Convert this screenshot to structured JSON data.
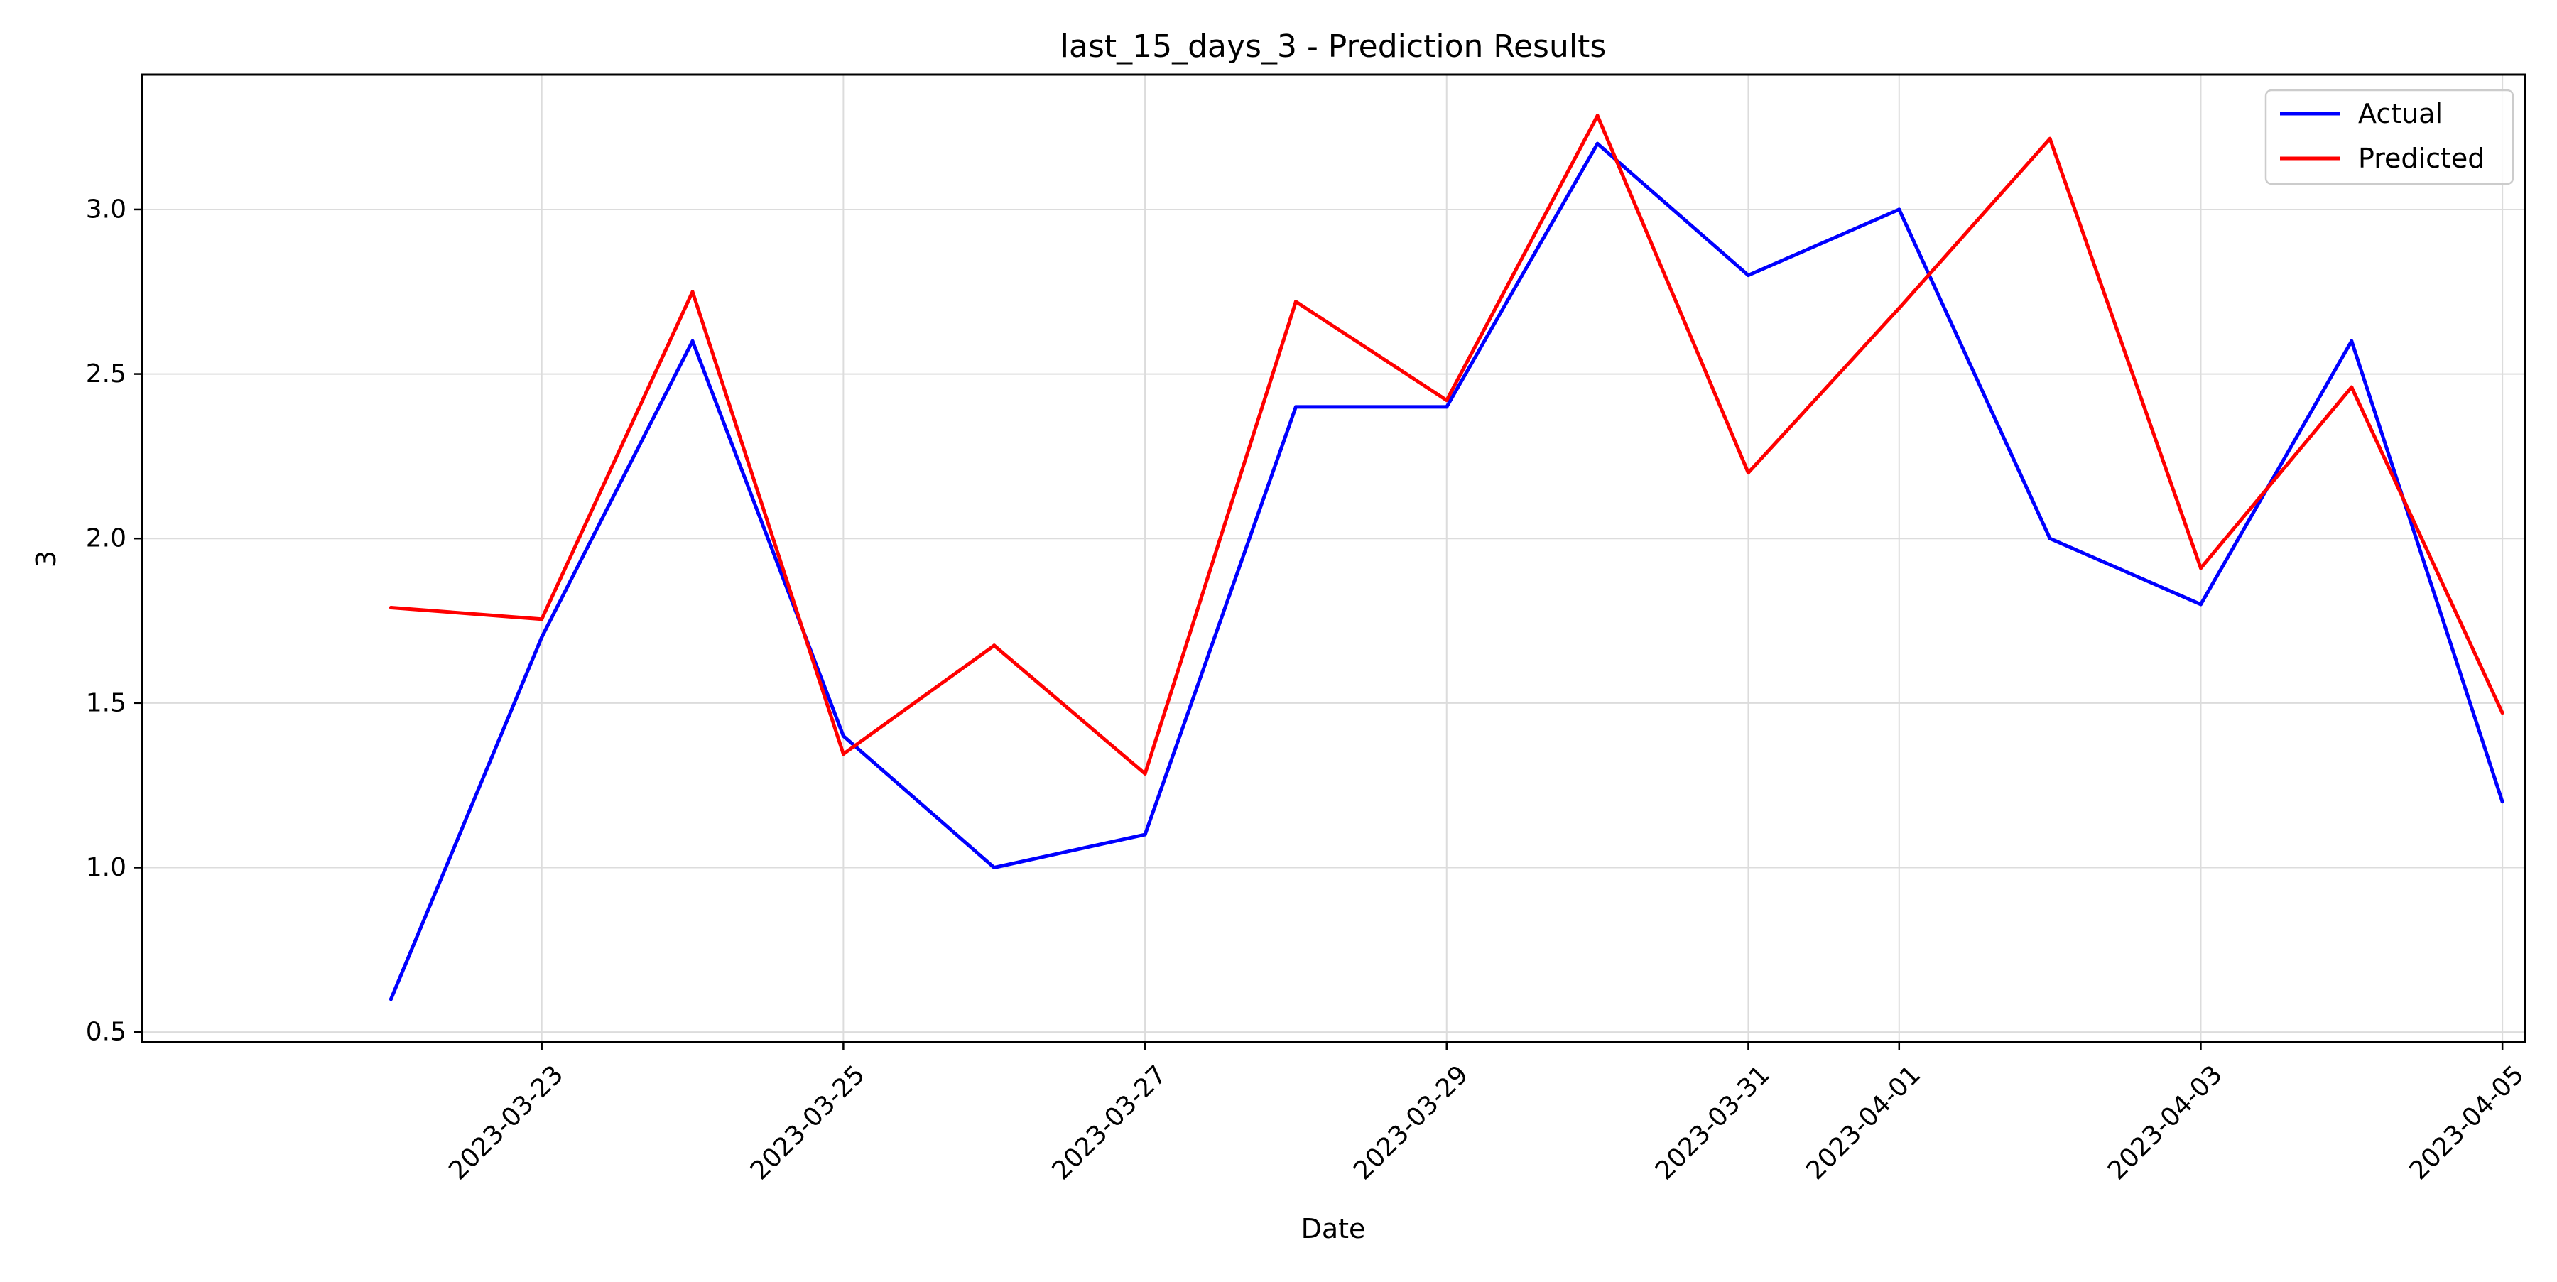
{
  "chart_data": {
    "type": "line",
    "title": "last_15_days_3 - Prediction Results",
    "xlabel": "Date",
    "ylabel": "3",
    "x": [
      "2023-03-22",
      "2023-03-23",
      "2023-03-24",
      "2023-03-25",
      "2023-03-26",
      "2023-03-27",
      "2023-03-28",
      "2023-03-29",
      "2023-03-30",
      "2023-03-31",
      "2023-04-01",
      "2023-04-02",
      "2023-04-03",
      "2023-04-04",
      "2023-04-05"
    ],
    "x_ticks": [
      "2023-03-23",
      "2023-03-25",
      "2023-03-27",
      "2023-03-29",
      "2023-03-31",
      "2023-04-01",
      "2023-04-03",
      "2023-04-05"
    ],
    "xlim": [
      "2023-03-21",
      "2023-04-05"
    ],
    "y_ticks": [
      "0.5",
      "1.0",
      "1.5",
      "2.0",
      "2.5",
      "3.0"
    ],
    "ylim": [
      0.47,
      3.41
    ],
    "grid": true,
    "legend_position": "top-right",
    "series": [
      {
        "name": "Actual",
        "color": "#0000ff",
        "values": [
          0.6,
          1.7,
          2.6,
          1.4,
          1.0,
          1.1,
          2.4,
          2.4,
          3.2,
          2.8,
          3.0,
          2.0,
          1.8,
          2.6,
          1.2
        ]
      },
      {
        "name": "Predicted",
        "color": "#ff0000",
        "values": [
          1.79,
          1.755,
          2.75,
          1.345,
          1.675,
          1.285,
          2.72,
          2.42,
          3.285,
          2.2,
          2.7,
          3.215,
          1.91,
          2.46,
          1.47
        ]
      }
    ]
  }
}
